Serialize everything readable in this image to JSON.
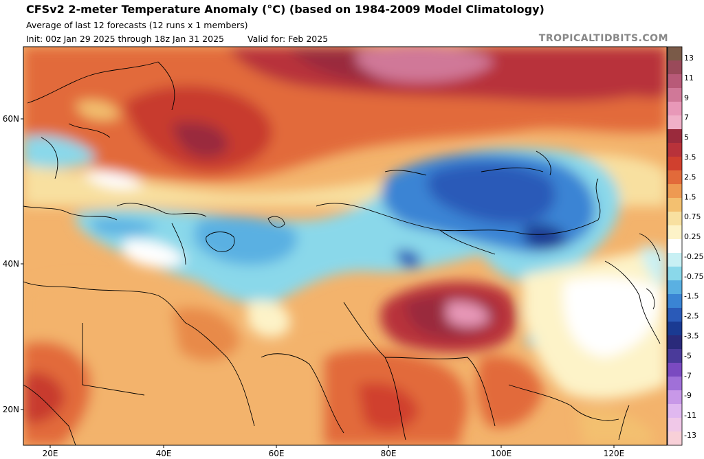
{
  "header": {
    "title": "CFSv2 2-meter Temperature Anomaly (°C) (based on 1984-2009 Model Climatology)",
    "subtitle": "Average of last 12 forecasts (12 runs x 1 members)",
    "init": "Init: 00z Jan 29 2025 through 18z Jan 31 2025",
    "valid": "Valid for: Feb 2025",
    "credit": "TROPICALTIDBITS.COM"
  },
  "map": {
    "lat_labels": [
      "60N",
      "40N",
      "20N"
    ],
    "lon_labels": [
      "20E",
      "40E",
      "60E",
      "80E",
      "100E",
      "120E"
    ]
  },
  "colorbar": {
    "labels": [
      "13",
      "11",
      "9",
      "7",
      "5",
      "3.5",
      "2.5",
      "1.5",
      "0.75",
      "0.25",
      "-0.25",
      "-0.75",
      "-1.5",
      "-2.5",
      "-3.5",
      "-5",
      "-7",
      "-9",
      "-11",
      "-13"
    ],
    "colors": [
      "#7a5a48",
      "#9a4a5a",
      "#b85a78",
      "#d07898",
      "#e898b8",
      "#f0b0c8",
      "#9a2a3c",
      "#b8323a",
      "#d0402e",
      "#e26a3a",
      "#ee9a52",
      "#f3c070",
      "#f8e0a0",
      "#fdf3c8",
      "#ffffff",
      "#c8f0f4",
      "#8ad8ea",
      "#5ab0e2",
      "#3a84d4",
      "#2a5ab8",
      "#1a3a92",
      "#2a2a7a",
      "#4a3a9a",
      "#7a4ac0",
      "#a070d8",
      "#c898e8",
      "#e0b8f0",
      "#f0c8e8",
      "#f8d0d8"
    ]
  }
}
